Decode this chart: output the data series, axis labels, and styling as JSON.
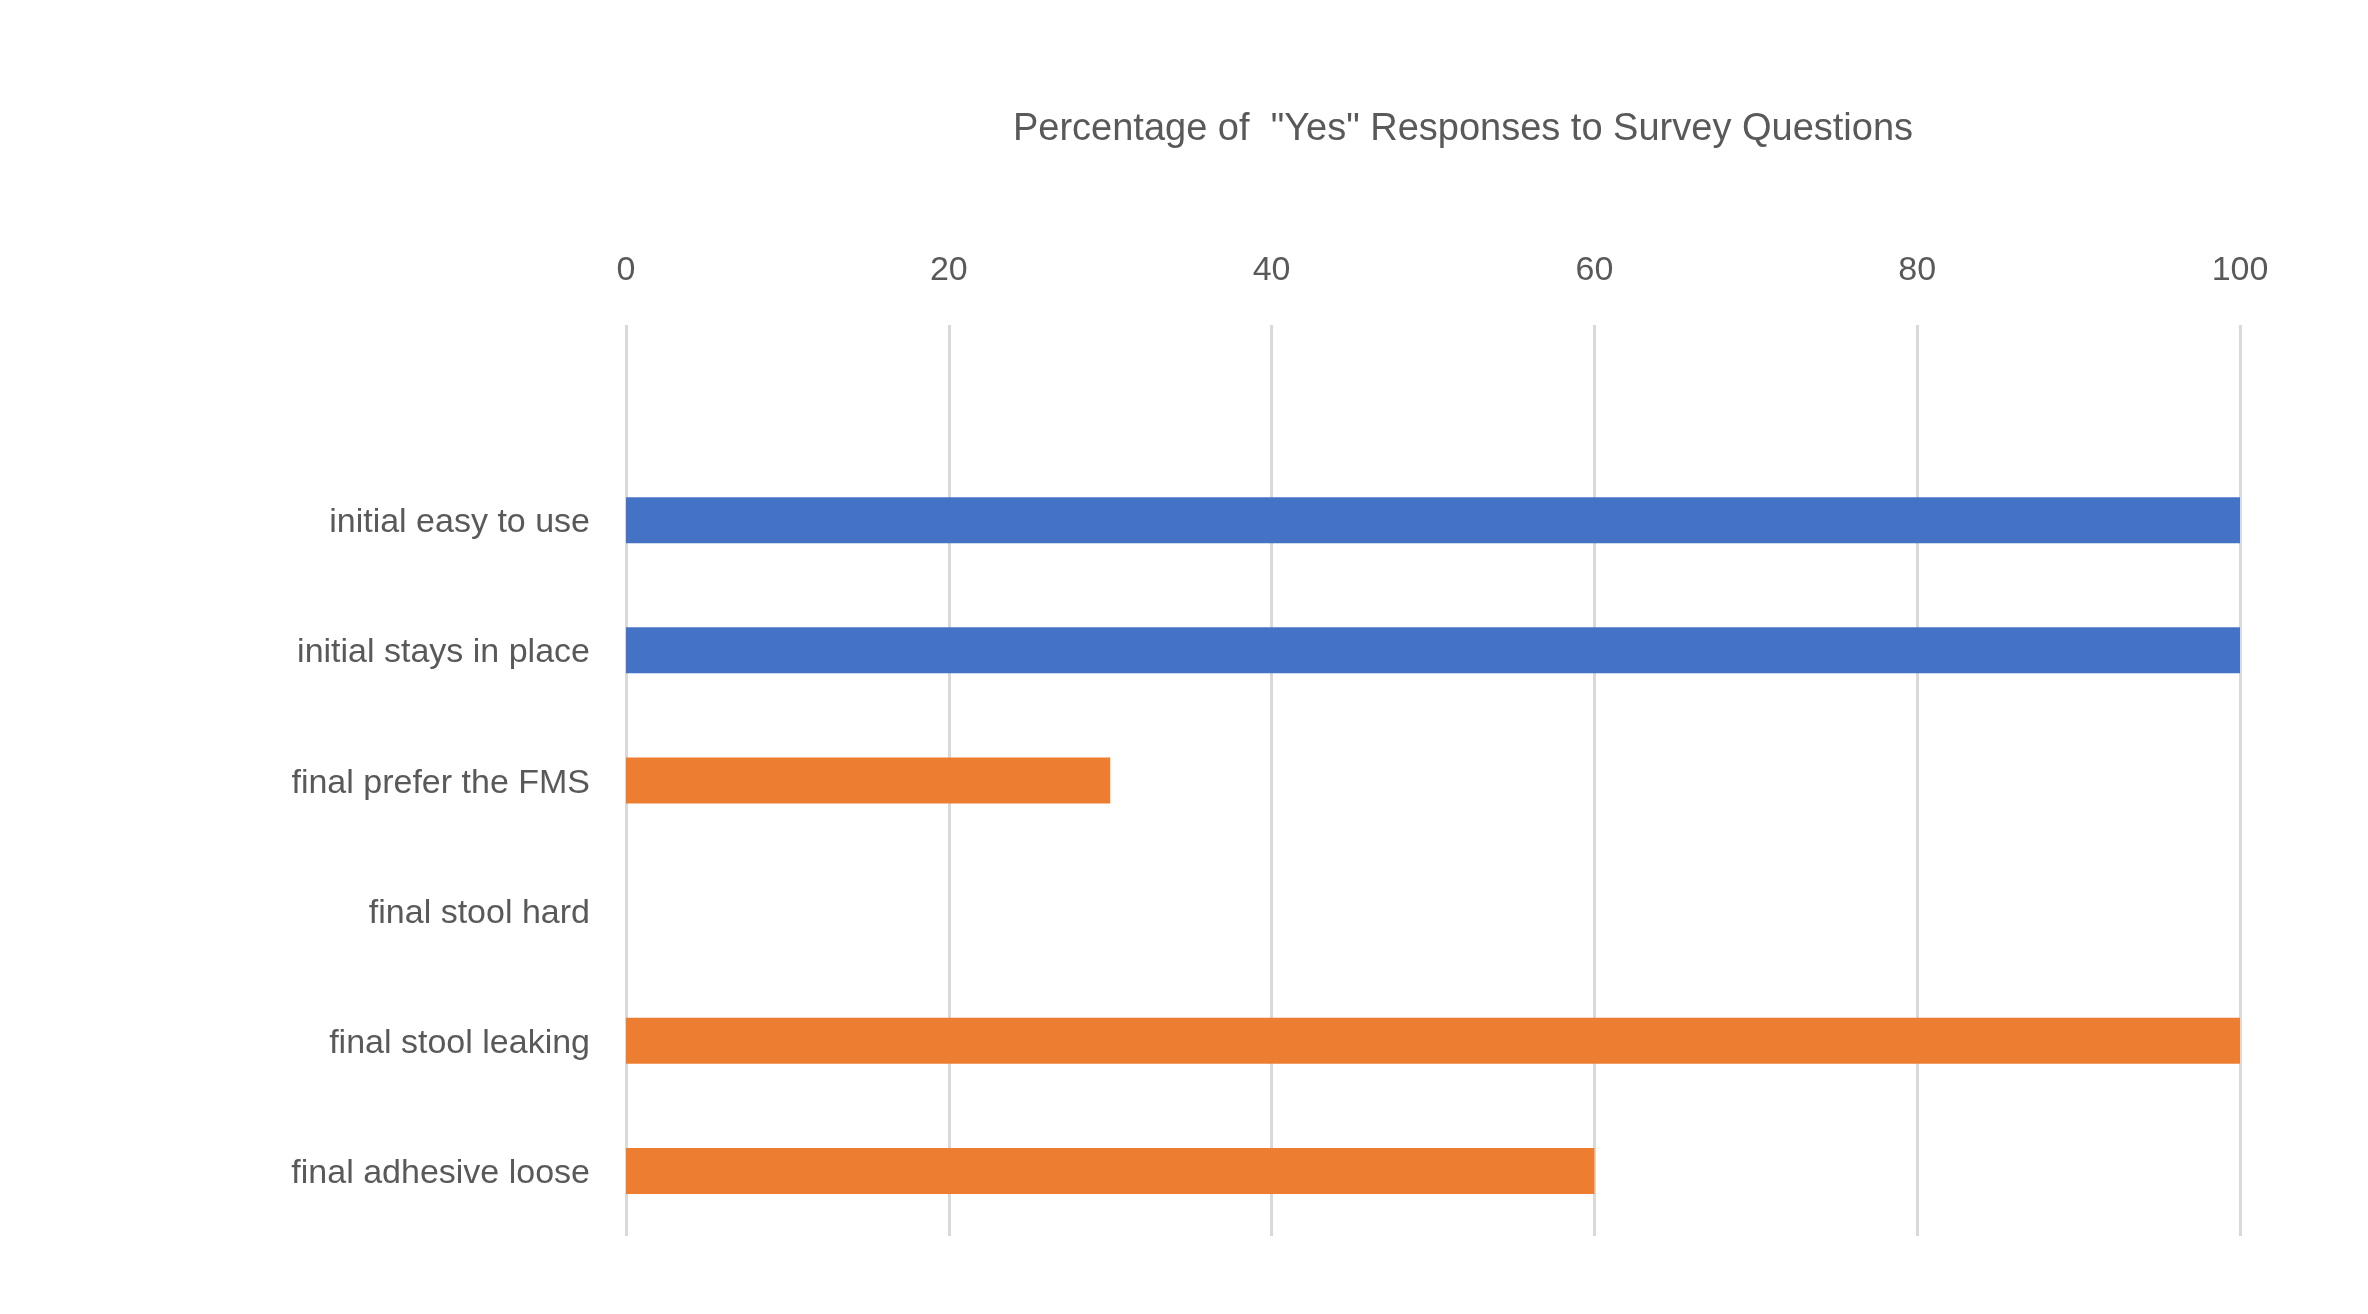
{
  "chart_data": {
    "type": "bar",
    "orientation": "horizontal",
    "title": "Percentage of  \"Yes\" Responses to Survey Questions",
    "categories": [
      null,
      "initial easy to use",
      "initial stays in place",
      "final prefer the FMS",
      "final stool hard",
      "final stool leaking",
      "final adhesive loose"
    ],
    "values": [
      null,
      100,
      100,
      30,
      0,
      100,
      60
    ],
    "colors": [
      "#4472c4",
      "#4472c4",
      "#4472c4",
      "#ed7d31",
      "#ed7d31",
      "#ed7d31",
      "#ed7d31"
    ],
    "xlim": [
      0,
      100
    ],
    "xticks": [
      0,
      20,
      40,
      60,
      80,
      100
    ],
    "grid": "x"
  }
}
